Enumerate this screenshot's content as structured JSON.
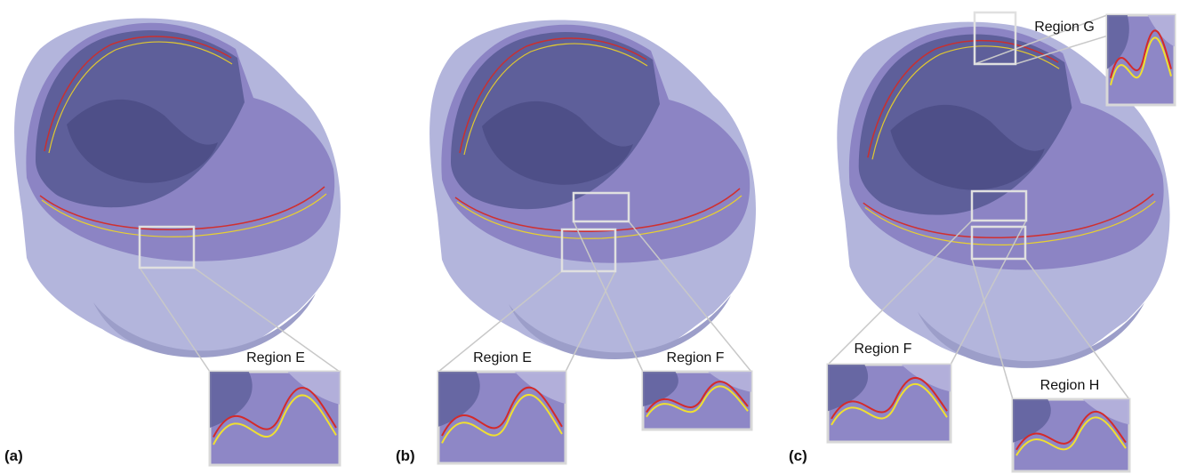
{
  "panels": [
    {
      "label": "(a)",
      "regions": [
        "Region E"
      ]
    },
    {
      "label": "(b)",
      "regions": [
        "Region E",
        "Region F"
      ]
    },
    {
      "label": "(c)",
      "regions": [
        "Region F",
        "Region G",
        "Region H"
      ]
    }
  ]
}
